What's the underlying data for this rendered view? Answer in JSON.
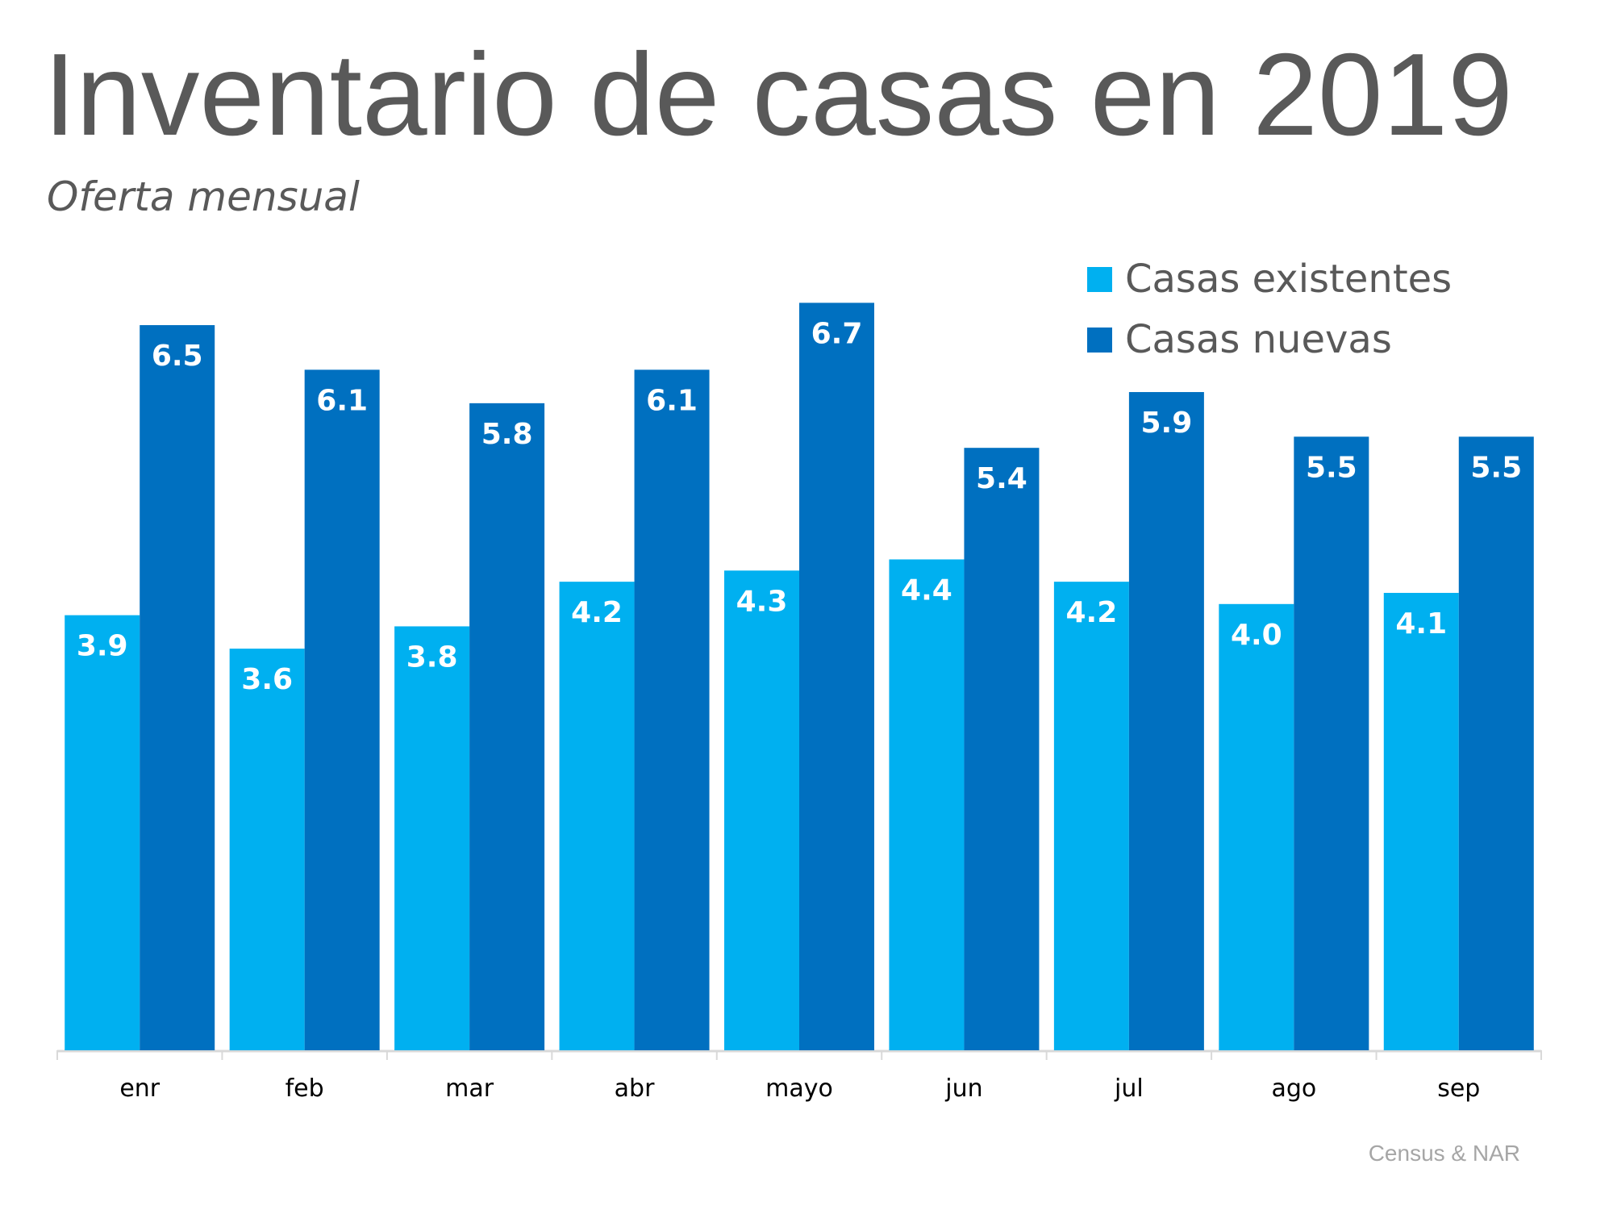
{
  "chart_data": {
    "type": "bar",
    "title": "Inventario de casas en 2019",
    "subtitle": "Oferta mensual",
    "source": "Census & NAR",
    "categories": [
      "enr",
      "feb",
      "mar",
      "abr",
      "mayo",
      "jun",
      "jul",
      "ago",
      "sep"
    ],
    "series": [
      {
        "name": "Casas existentes",
        "color": "#00B0F0",
        "values": [
          3.9,
          3.6,
          3.8,
          4.2,
          4.3,
          4.4,
          4.2,
          4.0,
          4.1
        ]
      },
      {
        "name": "Casas nuevas",
        "color": "#0070C0",
        "values": [
          6.5,
          6.1,
          5.8,
          6.1,
          6.7,
          5.4,
          5.9,
          5.5,
          5.5
        ]
      }
    ],
    "ylim": [
      0,
      7.5
    ],
    "grid": false,
    "legend_position": "top-right",
    "data_labels": true
  }
}
